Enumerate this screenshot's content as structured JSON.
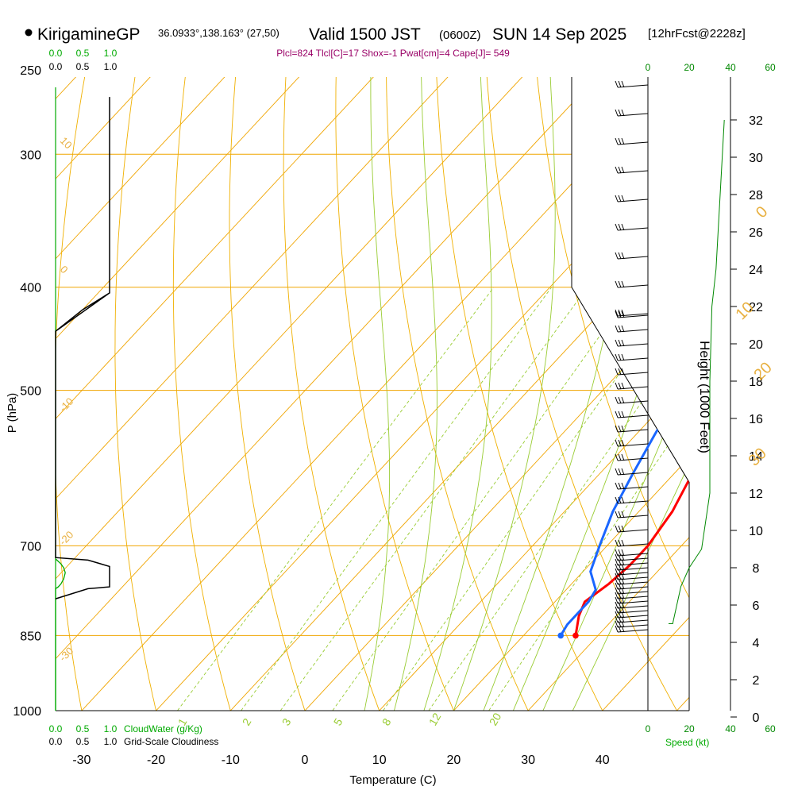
{
  "header": {
    "station": "KirigamineGP",
    "coords": "36.0933°,138.163° (27,50)",
    "valid_prefix": "Valid 1500 JST",
    "utc": "(0600Z)",
    "date": "SUN 14 Sep 2025",
    "forecast": "[12hrFcst@2228z]",
    "parcel_info": "Plcl=824 Tlcl[C]=17 Shox=-1 Pwat[cm]=4 Cape[J]= 549"
  },
  "colors": {
    "isotherm": "#f0a500",
    "isotherm_label": "#e8b040",
    "dry_adiabat": "#f0b000",
    "moist_adiabat": "#99cc33",
    "mixing_ratio": "#99cc33",
    "temperature": "#ff0000",
    "dewpoint": "#1a66ff",
    "parcel": "#800060",
    "cloud": "#00aa00",
    "speed": "#008800",
    "black": "#000000"
  },
  "chart_data": {
    "type": "line",
    "title": "KirigamineGP Valid 1500 JST (0600Z) SUN 14 Sep 2025",
    "xlabel": "Temperature (C)",
    "ylabel": "P (hPa)",
    "right_ylabel": "Height (1000 Feet)",
    "xlim": [
      -35,
      45
    ],
    "pressure_range": [
      250,
      1000
    ],
    "x_ticks": [
      -30,
      -20,
      -10,
      0,
      10,
      20,
      30,
      40
    ],
    "pressure_ticks": [
      250,
      300,
      400,
      500,
      700,
      850,
      1000
    ],
    "height_ticks": [
      0,
      2,
      4,
      6,
      8,
      10,
      12,
      14,
      16,
      18,
      20,
      22,
      24,
      26,
      28,
      30,
      32
    ],
    "series": [
      {
        "name": "Temperature",
        "points": [
          [
            27,
            850
          ],
          [
            25,
            815
          ],
          [
            24,
            790
          ],
          [
            25,
            760
          ],
          [
            25.5,
            730
          ],
          [
            25.5,
            700
          ],
          [
            24.5,
            650
          ],
          [
            22.5,
            600
          ],
          [
            19.5,
            550
          ],
          [
            16.5,
            500
          ],
          [
            13.5,
            450
          ],
          [
            11,
            400
          ],
          [
            8.5,
            350
          ],
          [
            6,
            300
          ],
          [
            4,
            270
          ]
        ]
      },
      {
        "name": "Dewpoint",
        "points": [
          [
            25,
            850
          ],
          [
            24.5,
            830
          ],
          [
            24.5,
            790
          ],
          [
            24,
            770
          ],
          [
            21,
            740
          ],
          [
            19,
            700
          ],
          [
            16.5,
            650
          ],
          [
            14.5,
            600
          ],
          [
            12.5,
            550
          ],
          [
            10.5,
            500
          ],
          [
            8,
            450
          ],
          [
            5,
            400
          ],
          [
            2,
            350
          ],
          [
            -1,
            300
          ],
          [
            -3.5,
            270
          ]
        ]
      },
      {
        "name": "Parcel",
        "points": [
          [
            17,
            550
          ],
          [
            17.5,
            500
          ],
          [
            15.5,
            450
          ],
          [
            13,
            400
          ],
          [
            10.5,
            350
          ],
          [
            7.5,
            300
          ],
          [
            5,
            270
          ]
        ]
      }
    ],
    "isotherm_labels": [
      -30,
      -20,
      -10,
      0,
      10,
      20,
      30
    ],
    "mixing_ratio_labels": [
      "1",
      "2",
      "3",
      "5",
      "8",
      "12",
      "20"
    ],
    "cloud_water": {
      "label": "CloudWater (g/Kg)",
      "ticks": [
        "0.0",
        "0.5",
        "1.0"
      ],
      "points": [
        [
          0,
          1000
        ],
        [
          0,
          768
        ],
        [
          0.05,
          765
        ],
        [
          0.1,
          760
        ],
        [
          0.15,
          752
        ],
        [
          0.18,
          742
        ],
        [
          0.15,
          734
        ],
        [
          0.1,
          728
        ],
        [
          0.05,
          724
        ],
        [
          0,
          720
        ]
      ]
    },
    "cloudiness": {
      "label": "Grid-Scale Cloudiness",
      "ticks": [
        "0.0",
        "0.5",
        "1.0"
      ],
      "points": [
        [
          0,
          440
        ],
        [
          0.5,
          420
        ],
        [
          1.0,
          405
        ],
        [
          1.0,
          265
        ],
        [
          1.0,
          405
        ],
        [
          0,
          440
        ],
        [
          0,
          718
        ],
        [
          0.6,
          722
        ],
        [
          1.0,
          732
        ],
        [
          1.0,
          765
        ],
        [
          0.6,
          768
        ],
        [
          0,
          785
        ]
      ]
    },
    "wind_speed": {
      "label": "Speed (kt)",
      "ticks": [
        "0",
        "20",
        "40",
        "60"
      ],
      "points": [
        [
          10,
          5
        ],
        [
          12,
          5
        ],
        [
          14,
          6
        ],
        [
          16,
          7
        ],
        [
          20,
          8
        ],
        [
          26,
          9
        ],
        [
          30,
          12
        ],
        [
          30,
          18
        ],
        [
          31,
          22
        ],
        [
          33,
          24
        ],
        [
          35,
          28
        ],
        [
          37,
          32
        ]
      ]
    }
  }
}
